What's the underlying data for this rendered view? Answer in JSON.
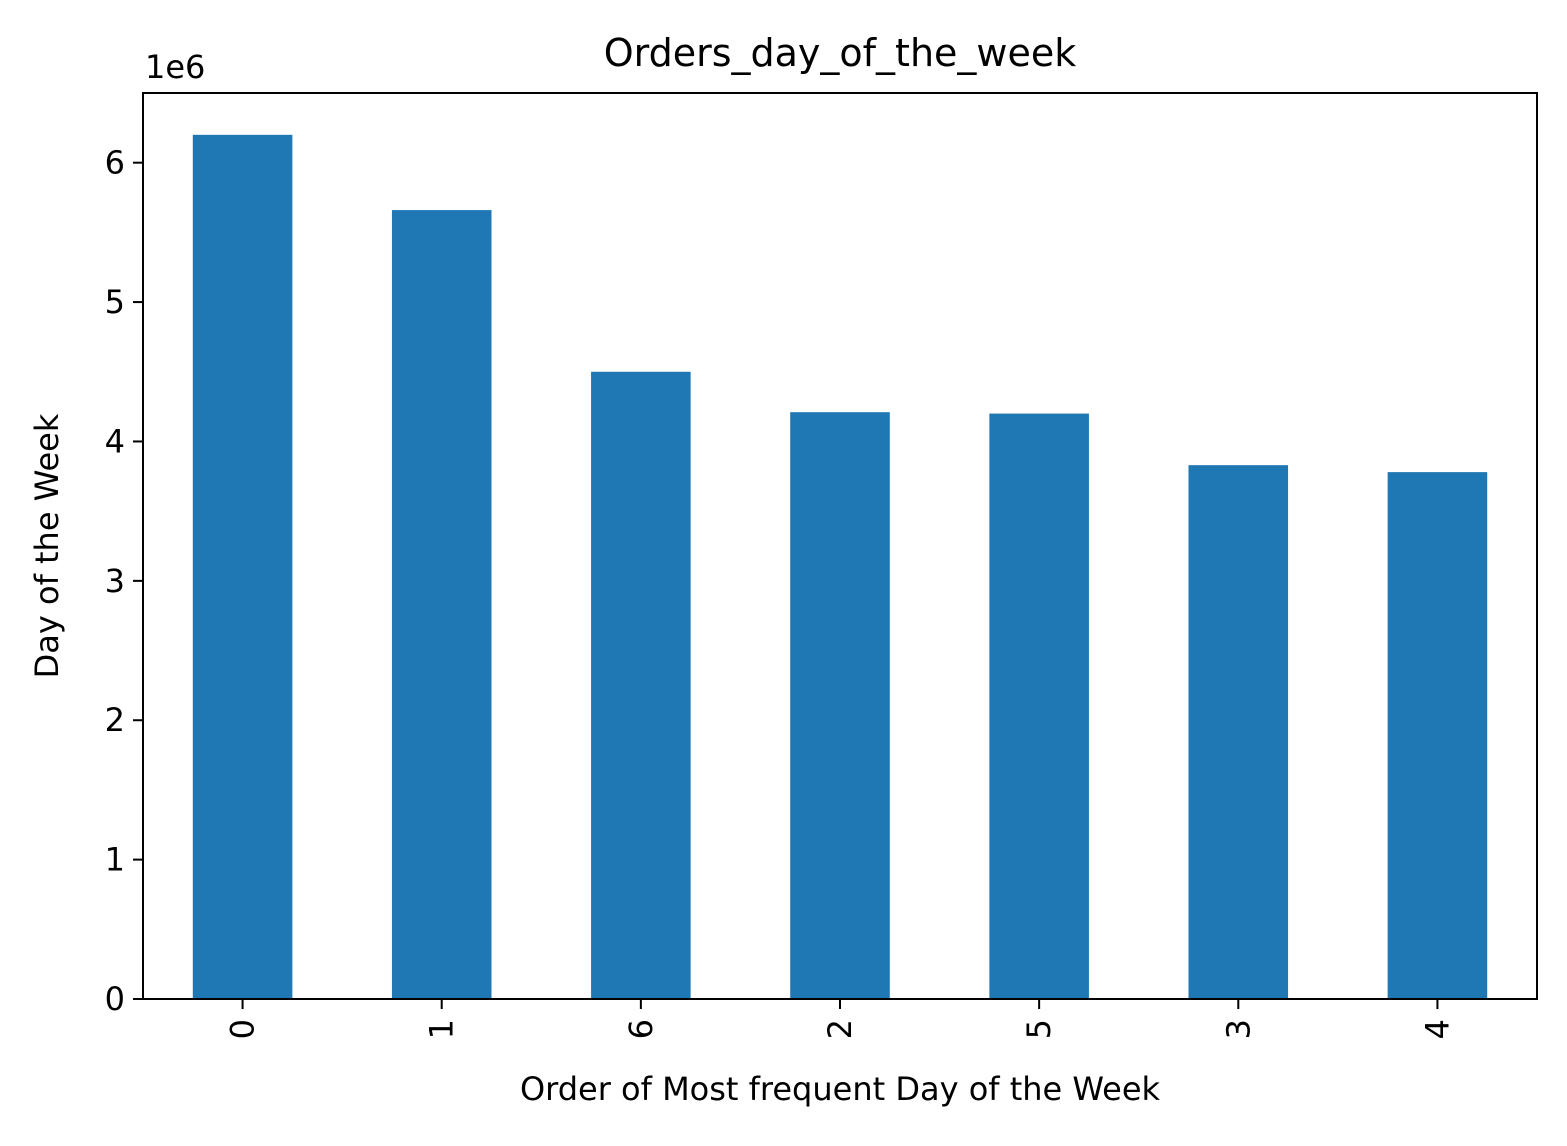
{
  "chart_data": {
    "type": "bar",
    "title": "Orders_day_of_the_week",
    "xlabel": "Order of Most frequent Day of the Week",
    "ylabel": "Day of the Week",
    "y_multiplier_label": "1e6",
    "categories": [
      "0",
      "1",
      "6",
      "2",
      "5",
      "3",
      "4"
    ],
    "values": [
      6200000,
      5660000,
      4500000,
      4210000,
      4200000,
      3830000,
      3780000
    ],
    "ylim": [
      0,
      6500000
    ],
    "y_ticks": [
      0,
      1000000,
      2000000,
      3000000,
      4000000,
      5000000,
      6000000
    ],
    "y_tick_labels": [
      "0",
      "1",
      "2",
      "3",
      "4",
      "5",
      "6"
    ],
    "x_tick_rotation": "vertical",
    "grid": false,
    "legend": "none",
    "bar_color": "#1f77b4"
  }
}
